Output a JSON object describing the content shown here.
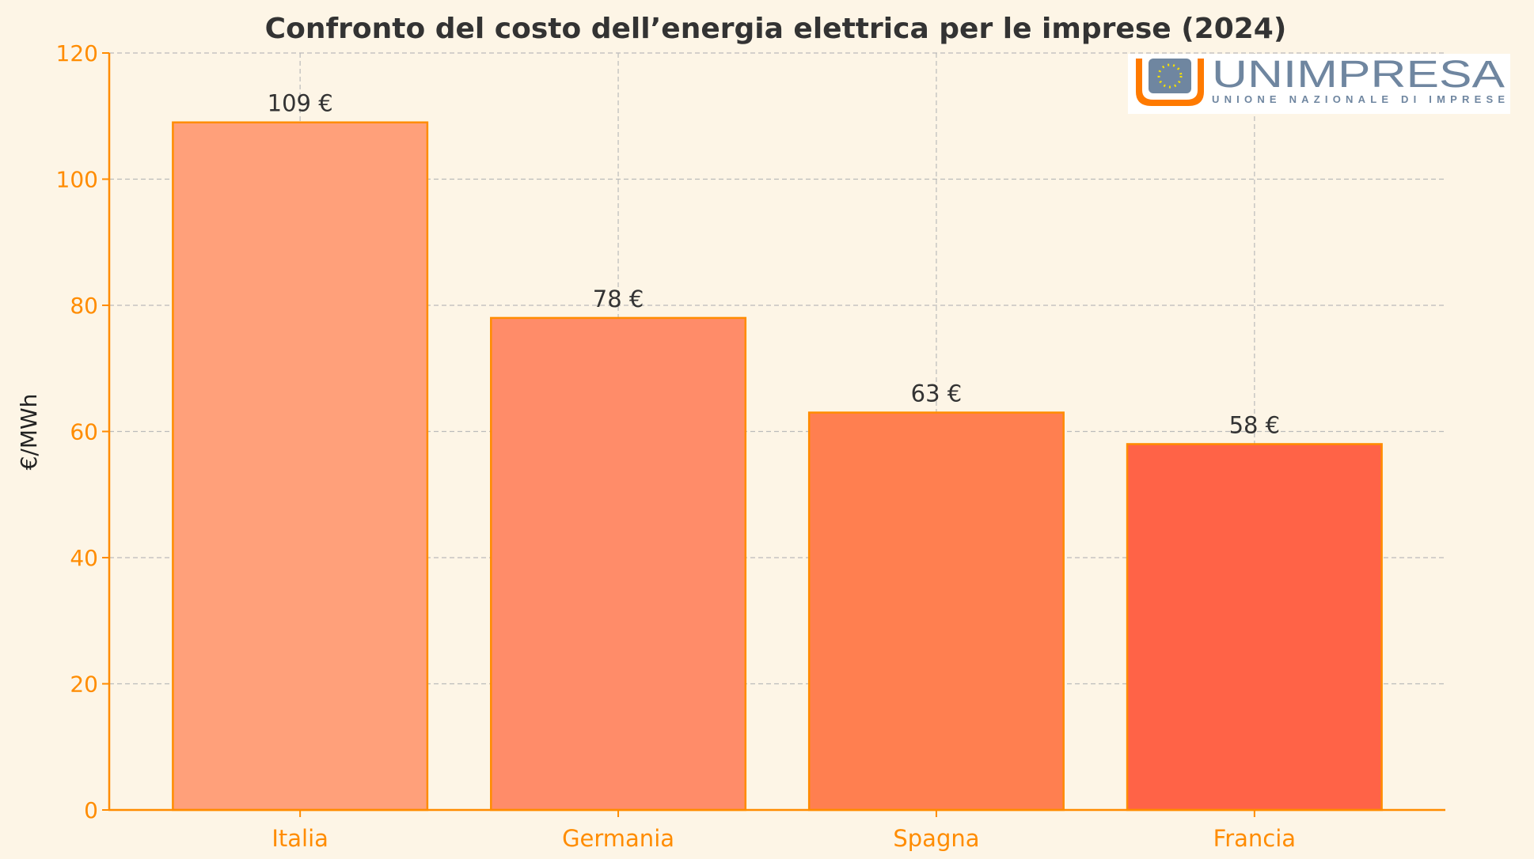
{
  "chart_data": {
    "type": "bar",
    "title": "Confronto del costo dell’energia elettrica per le imprese (2024)",
    "xlabel": "",
    "ylabel": "€/MWh",
    "categories": [
      "Italia",
      "Germania",
      "Spagna",
      "Francia"
    ],
    "values": [
      109,
      78,
      63,
      58
    ],
    "data_labels": [
      "109 €",
      "78 €",
      "63 €",
      "58 €"
    ],
    "bar_colors": [
      "#FFA07A",
      "#FF8C69",
      "#FF7F50",
      "#FF6347"
    ],
    "edge_color": "#FF8C00",
    "tick_color": "#FF8C00",
    "ylim": [
      0,
      120
    ],
    "yticks": [
      0,
      20,
      40,
      60,
      80,
      100,
      120
    ],
    "grid": true,
    "background": "#FDF5E6"
  },
  "logo": {
    "name": "UNIMPRESA",
    "subtitle": "UNIONE NAZIONALE DI IMPRESE",
    "accent": "#FF7A00",
    "text_color": "#6F86A0"
  }
}
